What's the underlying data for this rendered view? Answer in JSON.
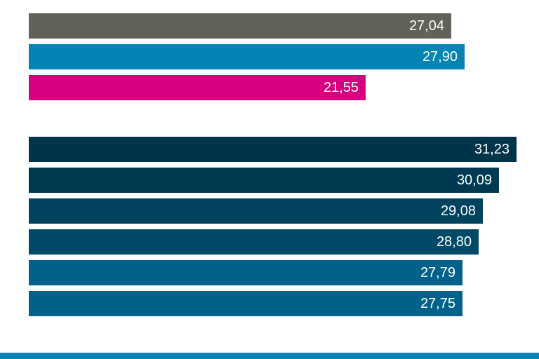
{
  "chart_data": {
    "type": "bar",
    "orientation": "horizontal",
    "title": "",
    "xlabel": "",
    "ylabel": "",
    "xlim": [
      0,
      31.23
    ],
    "grid": false,
    "legend": "none",
    "groups": [
      {
        "bars": [
          {
            "value": 27.04,
            "label": "27,04",
            "color": "#63625a"
          },
          {
            "value": 27.9,
            "label": "27,90",
            "color": "#0284b4"
          },
          {
            "value": 21.55,
            "label": "21,55",
            "color": "#d6007f"
          }
        ]
      },
      {
        "bars": [
          {
            "value": 31.23,
            "label": "31,23",
            "color": "#00344a"
          },
          {
            "value": 30.09,
            "label": "30,09",
            "color": "#003a52"
          },
          {
            "value": 29.08,
            "label": "29,08",
            "color": "#01435f"
          },
          {
            "value": 28.8,
            "label": "28,80",
            "color": "#014a67"
          },
          {
            "value": 27.79,
            "label": "27,79",
            "color": "#00628a"
          },
          {
            "value": 27.75,
            "label": "27,75",
            "color": "#00628a"
          }
        ]
      }
    ]
  },
  "footer": {
    "stripe_color": "#0284b4"
  }
}
